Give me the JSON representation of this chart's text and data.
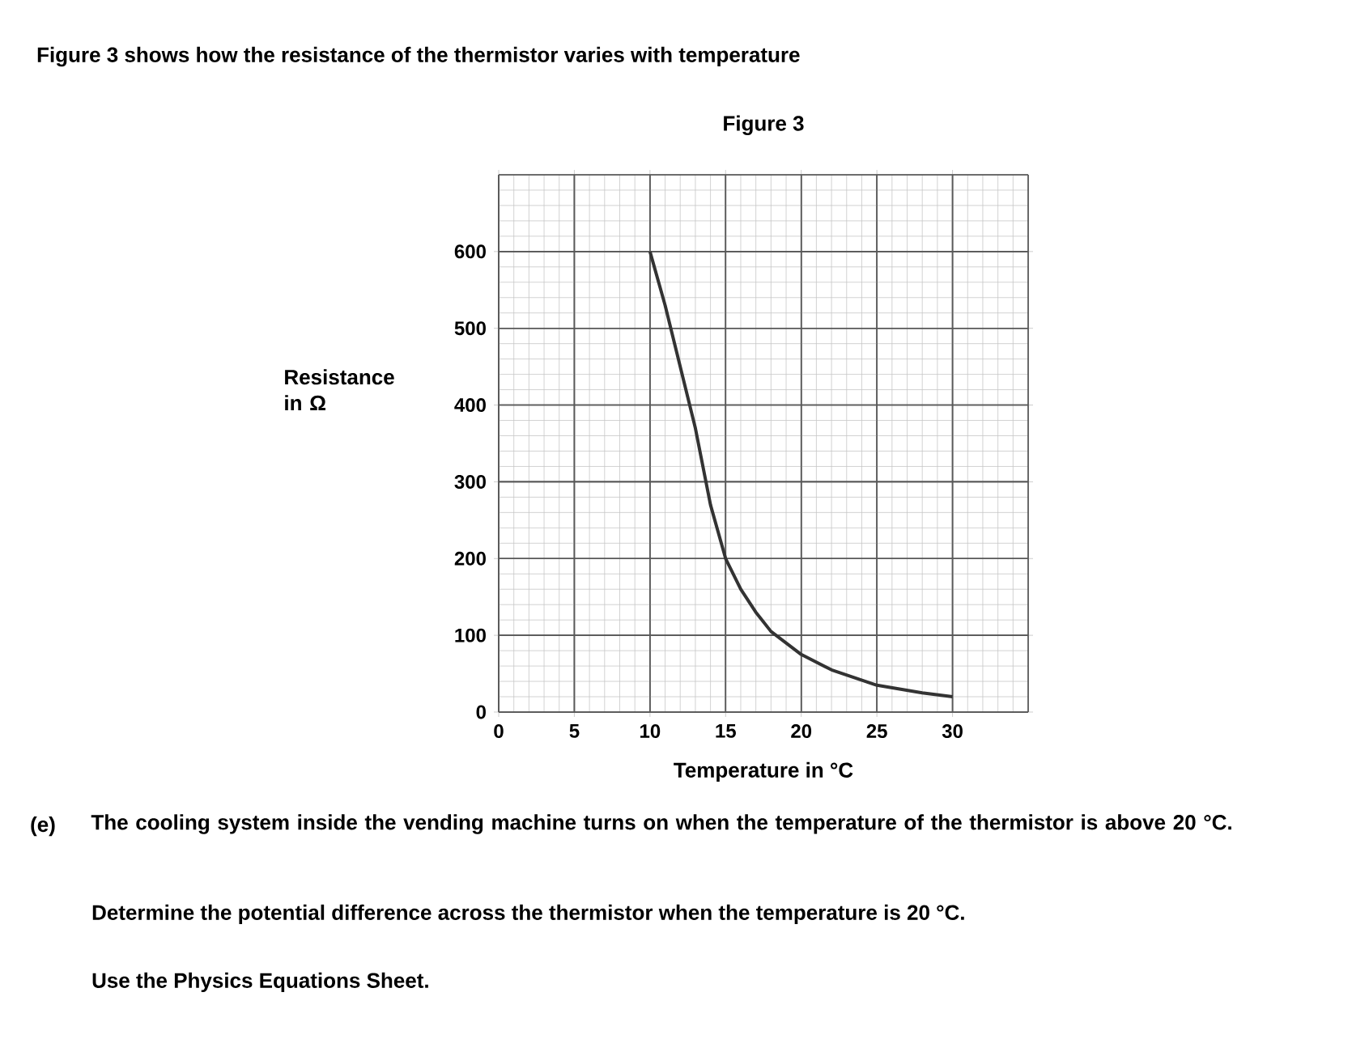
{
  "chart_data": {
    "type": "line",
    "title": "Figure 3",
    "xlabel": "Temperature in °C",
    "ylabel": "Resistance in Ω",
    "x": [
      10,
      11,
      12,
      13,
      14,
      15,
      16,
      17,
      18,
      20,
      22,
      25,
      28,
      30
    ],
    "series": [
      {
        "color": "#333333",
        "values": [
          600,
          530,
          450,
          370,
          270,
          200,
          160,
          130,
          105,
          75,
          55,
          35,
          25,
          20
        ]
      }
    ],
    "xlim": [
      0,
      35
    ],
    "ylim": [
      0,
      700
    ],
    "xticks": [
      0,
      5,
      10,
      15,
      20,
      25,
      30
    ],
    "yticks": [
      0,
      100,
      200,
      300,
      400,
      500,
      600
    ],
    "grid": true,
    "marker": "none",
    "line_style": "solid",
    "annotations": [
      "Figure 3 shows how the resistance of the thermistor varies with temperature",
      "(e)",
      "The cooling system inside the vending machine turns on when the temperature of the thermistor is above 20 °C.",
      "Determine the potential difference across the thermistor when the temperature is 20 °C.",
      "Use the Physics Equations Sheet."
    ]
  }
}
